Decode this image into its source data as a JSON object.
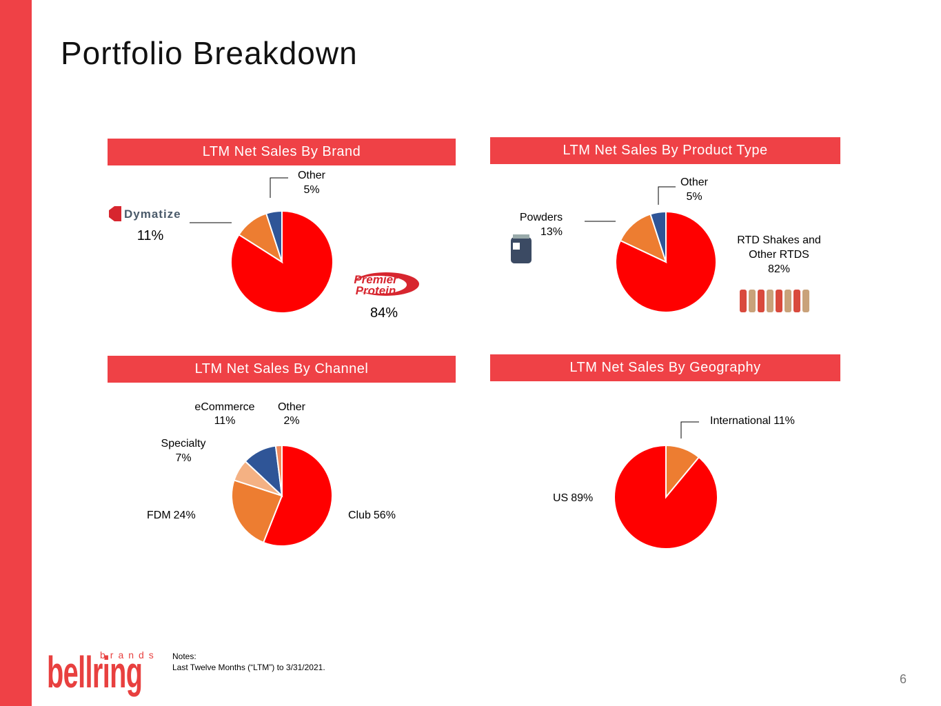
{
  "title": "Portfolio Breakdown",
  "chart_data": [
    {
      "type": "pie",
      "title": "LTM Net Sales By Brand",
      "categories": [
        "Premier Protein",
        "Dymatize",
        "Other"
      ],
      "values": [
        84,
        11,
        5
      ],
      "value_labels": [
        "84%",
        "11%",
        "5%"
      ],
      "colors": [
        "#ff0000",
        "#ed7d31",
        "#2f5597"
      ]
    },
    {
      "type": "pie",
      "title": "LTM Net Sales By Product Type",
      "categories": [
        "RTD Shakes and Other RTDS",
        "Powders",
        "Other"
      ],
      "values": [
        82,
        13,
        5
      ],
      "value_labels": [
        "82%",
        "13%",
        "5%"
      ],
      "colors": [
        "#ff0000",
        "#ed7d31",
        "#2f5597"
      ]
    },
    {
      "type": "pie",
      "title": "LTM Net Sales By Channel",
      "categories": [
        "Club",
        "FDM",
        "Specialty",
        "eCommerce",
        "Other"
      ],
      "values": [
        56,
        24,
        7,
        11,
        2
      ],
      "value_labels": [
        "56%",
        "24%",
        "7%",
        "11%",
        "2%"
      ],
      "colors": [
        "#ff0000",
        "#ed7d31",
        "#f4b183",
        "#2f5597",
        "#f08a5d"
      ]
    },
    {
      "type": "pie",
      "title": "LTM Net Sales By Geography",
      "categories": [
        "International",
        "US"
      ],
      "values": [
        11,
        89
      ],
      "value_labels": [
        "11%",
        "89%"
      ],
      "colors": [
        "#ed7d31",
        "#ff0000"
      ]
    }
  ],
  "notes": {
    "heading": "Notes:",
    "text": "Last Twelve Months (“LTM”) to 3/31/2021."
  },
  "logo": {
    "name": "bellring",
    "tagline": "brands"
  },
  "page_number": "6"
}
